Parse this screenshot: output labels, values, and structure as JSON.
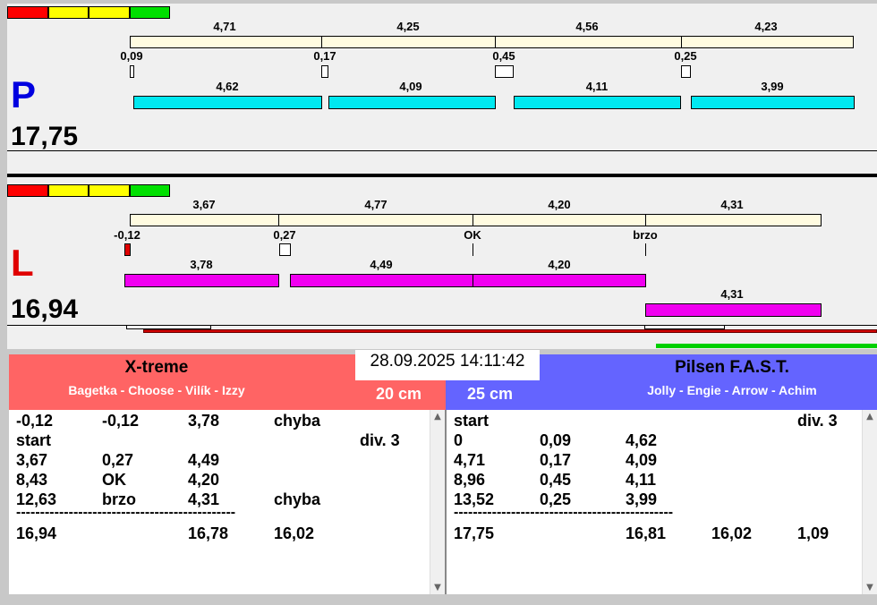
{
  "colors": {
    "red": "#ff0000",
    "yellow": "#ffff00",
    "green": "#00e000",
    "cream": "#fffbe0",
    "cyan": "#00e8f0",
    "magenta": "#f000f0",
    "left_header": "#ff6464",
    "right_header": "#6464ff"
  },
  "lane_p": {
    "letter": "P",
    "total": "17,75",
    "top_labels": [
      "4,71",
      "4,25",
      "4,56",
      "4,23"
    ],
    "mid_labels": [
      "0,09",
      "0,17",
      "0,45",
      "0,25"
    ],
    "bottom_labels": [
      "4,62",
      "4,09",
      "4,11",
      "3,99"
    ]
  },
  "lane_l": {
    "letter": "L",
    "total": "16,94",
    "top_labels": [
      "3,67",
      "4,77",
      "4,20",
      "4,31"
    ],
    "mid_labels": [
      "-0,12",
      "0,27",
      "OK",
      "brzo"
    ],
    "bottom_labels": [
      "3,78",
      "4,49",
      "4,20"
    ],
    "extra_label": "4,31"
  },
  "datetime": "28.09.2025 14:11:42",
  "left_team": {
    "name": "X-treme",
    "dogs": "Bagetka - Choose - Vilík - Izzy",
    "distance": "20 cm",
    "rows": [
      [
        "-0,12",
        "-0,12",
        "3,78",
        "chyba",
        ""
      ],
      [
        "start",
        "",
        "",
        "",
        "div.  3"
      ],
      [
        "3,67",
        "0,27",
        "4,49",
        "",
        ""
      ],
      [
        "8,43",
        "OK",
        "4,20",
        "",
        ""
      ],
      [
        "12,63",
        "brzo",
        "4,31",
        "chyba",
        ""
      ]
    ],
    "separator": "----------------------------------------------",
    "totals": [
      "16,94",
      "",
      "16,78",
      "16,02",
      ""
    ]
  },
  "right_team": {
    "name": "Pilsen F.A.S.T.",
    "dogs": "Jolly - Engie - Arrow - Achim",
    "distance": "25 cm",
    "rows": [
      [
        "start",
        "",
        "",
        "",
        "div.  3"
      ],
      [
        "0",
        "0,09",
        "4,62",
        "",
        ""
      ],
      [
        "4,71",
        "0,17",
        "4,09",
        "",
        ""
      ],
      [
        "8,96",
        "0,45",
        "4,11",
        "",
        ""
      ],
      [
        "13,52",
        "0,25",
        "3,99",
        "",
        ""
      ]
    ],
    "separator": "----------------------------------------------",
    "totals": [
      "17,75",
      "",
      "16,81",
      "16,02",
      "1,09"
    ]
  }
}
